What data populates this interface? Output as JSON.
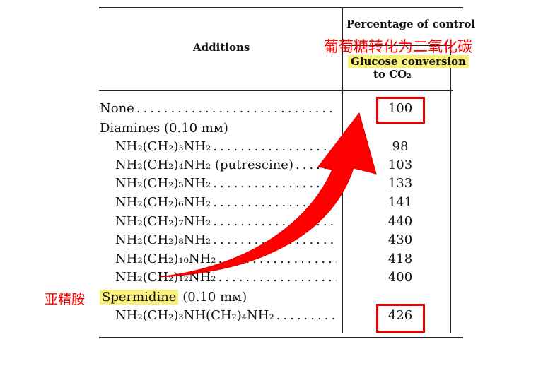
{
  "table": {
    "col_additions": "Additions",
    "col_percentage": "Percentage of control",
    "col_glucose": "Glucose conversion",
    "col_glucose_2": "to CO₂",
    "rows": [
      {
        "label": "None",
        "value": "100",
        "highlighted": true
      },
      {
        "label": "Diamines (0.10 mм)",
        "value": ""
      },
      {
        "label": "NH₂(CH₂)₃NH₂",
        "value": "98"
      },
      {
        "label": "NH₂(CH₂)₄NH₂ (putrescine)",
        "value": "103"
      },
      {
        "label": "NH₂(CH₂)₅NH₂",
        "value": "133"
      },
      {
        "label": "NH₂(CH₂)₆NH₂",
        "value": "141"
      },
      {
        "label": "NH₂(CH₂)₇NH₂",
        "value": "440"
      },
      {
        "label": "NH₂(CH₂)₈NH₂",
        "value": "430"
      },
      {
        "label": "NH₂(CH₂)₁₀NH₂",
        "value": "418"
      },
      {
        "label": "NH₂(CH₂)₁₂NH₂",
        "value": "400"
      },
      {
        "label": "Spermidine",
        "label_suffix": " (0.10 mм)",
        "value": ""
      },
      {
        "label": "NH₂(CH₂)₃NH(CH₂)₄NH₂",
        "value": "426",
        "highlighted": true
      }
    ]
  },
  "annotations": {
    "glucose_cn": "葡萄糖转化为二氧化碳",
    "spermidine_cn": "亚精胺",
    "accent_color": "#ff0000",
    "highlight_color": "#f7f07a"
  }
}
